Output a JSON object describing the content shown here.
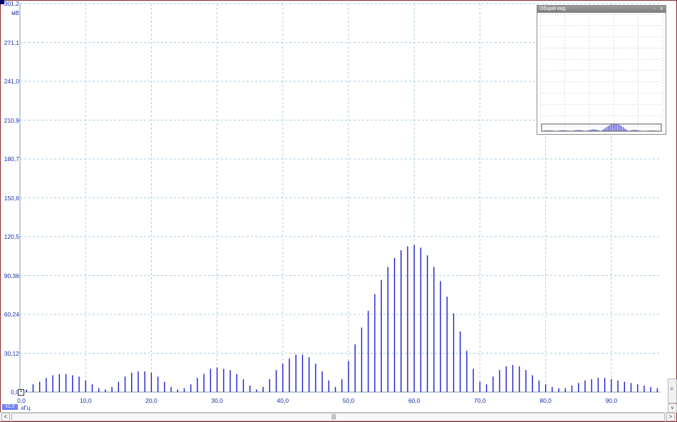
{
  "chart_data": {
    "type": "bar",
    "x_unit": "кГц",
    "y_unit": "мВ",
    "xlim": [
      0,
      97.5
    ],
    "ylim": [
      0,
      301.2
    ],
    "x_ticks": [
      "0,0",
      "10,0",
      "20,0",
      "30,0",
      "40,0",
      "50,0",
      "60,0",
      "70,0",
      "80,0",
      "90,0"
    ],
    "y_ticks": [
      "0,0",
      "30,12",
      "60,24",
      "90,36",
      "120,5",
      "150,6",
      "180,7",
      "210,9",
      "241,0",
      "271,1",
      "301,2"
    ],
    "grid": true,
    "series": [
      {
        "color": "#1c1cc8",
        "x": [
          1.0,
          2.0,
          3.0,
          4.0,
          5.0,
          6.0,
          7.0,
          8.0,
          9.0,
          10.0,
          11.0,
          12.0,
          13.0,
          14.0,
          15.0,
          16.0,
          17.0,
          18.0,
          19.0,
          20.0,
          21.0,
          22.0,
          23.0,
          24.0,
          25.0,
          26.0,
          27.0,
          28.0,
          29.0,
          30.0,
          31.0,
          32.0,
          33.0,
          34.0,
          35.0,
          36.0,
          37.0,
          38.0,
          39.0,
          40.0,
          41.0,
          42.0,
          43.0,
          44.0,
          45.0,
          46.0,
          47.0,
          48.0,
          49.0,
          50.0,
          51.0,
          52.0,
          53.0,
          54.0,
          55.0,
          56.0,
          57.0,
          58.0,
          59.0,
          60.0,
          61.0,
          62.0,
          63.0,
          64.0,
          65.0,
          66.0,
          67.0,
          68.0,
          69.0,
          70.0,
          71.0,
          72.0,
          73.0,
          74.0,
          75.0,
          76.0,
          77.0,
          78.0,
          79.0,
          80.0,
          81.0,
          82.0,
          83.0,
          84.0,
          85.0,
          86.0,
          87.0,
          88.0,
          89.0,
          90.0,
          91.0,
          92.0,
          93.0,
          94.0,
          95.0,
          96.0,
          97.0
        ],
        "values": [
          2,
          6,
          8,
          11,
          13,
          14,
          14,
          13,
          12,
          9,
          6,
          3,
          2,
          4,
          8,
          12,
          15,
          16,
          16,
          15,
          12,
          8,
          4,
          2,
          3,
          6,
          11,
          14,
          18,
          19,
          18,
          17,
          14,
          10,
          5,
          2,
          4,
          10,
          17,
          22,
          26,
          29,
          29,
          27,
          22,
          16,
          9,
          4,
          10,
          24,
          37,
          50,
          63,
          76,
          87,
          97,
          104,
          110,
          113,
          114,
          112,
          106,
          97,
          86,
          74,
          61,
          47,
          32,
          18,
          8,
          6,
          12,
          17,
          20,
          21,
          20,
          17,
          13,
          9,
          6,
          4,
          3,
          3,
          5,
          7,
          9,
          10,
          11,
          11,
          10,
          9,
          8,
          7,
          6,
          5,
          4,
          3
        ]
      }
    ]
  },
  "overview": {
    "title": "Общий вид",
    "minimize": "-",
    "close": "x"
  },
  "controls": {
    "zero_label": "x1.0",
    "corner_button": "×",
    "h_grip": "|||",
    "v_grip": "≡",
    "arrow_left": "<",
    "arrow_right": ">",
    "arrow_down": "v"
  }
}
